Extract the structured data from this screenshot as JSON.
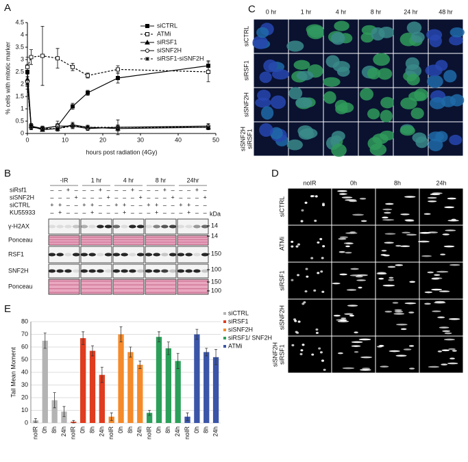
{
  "panel_labels": [
    "A",
    "B",
    "C",
    "D",
    "E"
  ],
  "chart_data": [
    {
      "type": "line",
      "xlabel": "hours post radiation (4Gy)",
      "ylabel": "% cells with mitotic marker",
      "x": [
        0,
        1,
        4,
        8,
        12,
        16,
        24,
        48
      ],
      "xlim": [
        0,
        50
      ],
      "xticks": [
        0,
        10,
        20,
        30,
        40,
        50
      ],
      "ylim": [
        0,
        4.5
      ],
      "yticks": [
        0,
        0.5,
        1,
        1.5,
        2,
        2.5,
        3,
        3.5,
        4,
        4.5
      ],
      "series": [
        {
          "name": "siCTRL",
          "color": "#000000",
          "marker": "square-filled",
          "dashed": false,
          "values": [
            2.5,
            0.3,
            0.2,
            0.3,
            1.1,
            1.65,
            2.25,
            2.75
          ],
          "errors": [
            0.3,
            0.1,
            0.1,
            0.1,
            0.12,
            0.1,
            0.2,
            0.2
          ]
        },
        {
          "name": "ATMi",
          "color": "#000000",
          "marker": "square-open",
          "dashed": true,
          "values": [
            2.7,
            3.1,
            3.15,
            3.05,
            2.7,
            2.35,
            2.6,
            2.5
          ],
          "errors": [
            0.4,
            0.3,
            1.2,
            0.4,
            0.15,
            0.1,
            0.15,
            0.4
          ]
        },
        {
          "name": "siRSF1",
          "color": "#000000",
          "marker": "triangle-filled",
          "dashed": false,
          "values": [
            2.2,
            0.3,
            0.15,
            0.2,
            0.35,
            0.25,
            0.2,
            0.25
          ],
          "errors": [
            0.2,
            0.1,
            0.05,
            0.1,
            0.1,
            0.08,
            0.1,
            0.1
          ]
        },
        {
          "name": "siSNF2H",
          "color": "#000000",
          "marker": "circle-open",
          "dashed": false,
          "values": [
            2.1,
            0.25,
            0.2,
            0.3,
            0.3,
            0.2,
            0.25,
            0.3
          ],
          "errors": [
            0.2,
            0.1,
            0.05,
            0.2,
            0.1,
            0.08,
            0.3,
            0.1
          ]
        },
        {
          "name": "siRSF1-siSNF2H",
          "color": "#000000",
          "marker": "star",
          "dashed": true,
          "values": [
            2.0,
            0.25,
            0.2,
            0.2,
            0.3,
            0.25,
            0.25,
            0.25
          ],
          "errors": [
            0.2,
            0.1,
            0.05,
            0.1,
            0.1,
            0.08,
            0.1,
            0.1
          ]
        }
      ],
      "legend": "upper right"
    },
    {
      "type": "grouped-bar",
      "ylabel": "Tail Mean Moment",
      "categories": [
        "noIR",
        "0h",
        "8h",
        "24h"
      ],
      "ylim": [
        0,
        80
      ],
      "yticks": [
        0,
        10,
        20,
        30,
        40,
        50,
        60,
        70,
        80
      ],
      "grid": true,
      "series": [
        {
          "name": "siCTRL",
          "color": "#b4b4b4",
          "values": [
            2,
            65,
            18,
            9
          ],
          "errors": [
            1.5,
            6,
            6,
            4
          ]
        },
        {
          "name": "siRSF1",
          "color": "#e03c1f",
          "values": [
            1,
            67,
            57,
            38
          ],
          "errors": [
            1,
            5,
            4,
            6
          ]
        },
        {
          "name": "siSNF2H",
          "color": "#f58a2a",
          "values": [
            5,
            70,
            56,
            46
          ],
          "errors": [
            3,
            6,
            4,
            3
          ]
        },
        {
          "name": "siRSF1/ SNF2H",
          "color": "#2ca05a",
          "values": [
            8,
            68,
            59,
            49
          ],
          "errors": [
            2,
            4,
            5,
            6
          ]
        },
        {
          "name": "ATMi",
          "color": "#3a55a8",
          "values": [
            5,
            70,
            56,
            52
          ],
          "errors": [
            3,
            4,
            3,
            6
          ]
        }
      ]
    }
  ],
  "blot": {
    "conditions": [
      "-IR",
      "1 hr",
      "4 hr",
      "8 hr",
      "24hr"
    ],
    "treatments": [
      {
        "label": "siRsf1",
        "signs": [
          "–",
          "–",
          "+",
          "–"
        ]
      },
      {
        "label": "siSNF2H",
        "signs": [
          "–",
          "–",
          "–",
          "+"
        ]
      },
      {
        "label": "siCTRL",
        "signs": [
          "+",
          "+",
          "–",
          "–"
        ]
      },
      {
        "label": "KU55933",
        "signs": [
          "–",
          "+",
          "–",
          "–"
        ]
      }
    ],
    "rows": [
      "γ-H2AX",
      "Ponceau",
      "RSF1",
      "SNF2H",
      "Ponceau"
    ],
    "kda_label": "kDa",
    "markers": [
      "14",
      "14",
      "150",
      "100",
      "150",
      "100"
    ]
  },
  "microscopy": {
    "columns": [
      "0 hr",
      "1 hr",
      "4 hr",
      "8 hr",
      "24 hr",
      "48 hr"
    ],
    "rows": [
      [
        "siCTRL"
      ],
      [
        "siRSF1"
      ],
      [
        "siSNF2H"
      ],
      [
        "siSNF2H",
        "siRSF1"
      ]
    ]
  },
  "comet": {
    "columns": [
      "noIR",
      "0h",
      "8h",
      "24h"
    ],
    "rows": [
      [
        "siCTRL"
      ],
      [
        "ATMi"
      ],
      [
        "siRSF1"
      ],
      [
        "siSNF2H"
      ],
      [
        "siSNF2H",
        "siRSF1"
      ]
    ]
  }
}
